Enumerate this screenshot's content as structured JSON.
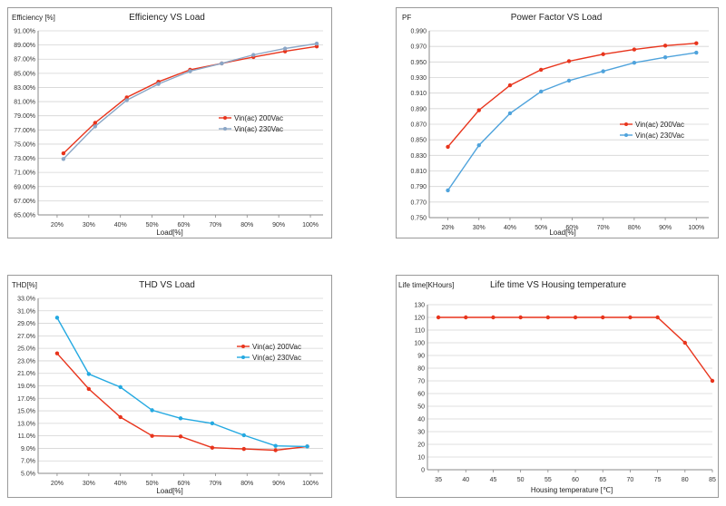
{
  "colors": {
    "series_a": "#e8341c",
    "series_b": "#4fa3dc",
    "series_b_thd": "#24a9e1",
    "grid": "#d4d4d4",
    "axis": "#888888"
  },
  "chart_data": [
    {
      "id": "eff",
      "type": "line",
      "title": "Efficiency VS Load",
      "ylabel": "Efficiency [%]",
      "xlabel": "Load[%]",
      "categories": [
        "20%",
        "30%",
        "40%",
        "50%",
        "60%",
        "70%",
        "80%",
        "90%",
        "100%"
      ],
      "x": [
        20,
        30,
        40,
        50,
        60,
        70,
        80,
        90,
        100
      ],
      "ylim": [
        65,
        91
      ],
      "yticks": [
        65,
        67,
        69,
        71,
        73,
        75,
        77,
        79,
        81,
        83,
        85,
        87,
        89,
        91
      ],
      "ytick_labels": [
        "65.00%",
        "67.00%",
        "69.00%",
        "71.00%",
        "73.00%",
        "75.00%",
        "77.00%",
        "79.00%",
        "81.00%",
        "83.00%",
        "85.00%",
        "87.00%",
        "89.00%",
        "91.00%"
      ],
      "legend_position": "middle-right",
      "grid": true,
      "series": [
        {
          "name": "Vin(ac) 200Vac",
          "color": "#e8341c",
          "x": [
            22,
            32,
            42,
            52,
            62,
            72,
            82,
            92,
            102
          ],
          "values": [
            73.7,
            78.0,
            81.6,
            83.8,
            85.5,
            86.4,
            87.3,
            88.1,
            88.8
          ]
        },
        {
          "name": "Vin(ac) 230Vac",
          "color": "#8aa6c6",
          "x": [
            22,
            32,
            42,
            52,
            62,
            72,
            82,
            92,
            102
          ],
          "values": [
            72.9,
            77.5,
            81.2,
            83.5,
            85.3,
            86.4,
            87.6,
            88.5,
            89.2
          ]
        }
      ]
    },
    {
      "id": "pf",
      "type": "line",
      "title": "Power Factor VS Load",
      "ylabel": "PF",
      "xlabel": "Load[%]",
      "categories": [
        "20%",
        "30%",
        "40%",
        "50%",
        "60%",
        "70%",
        "80%",
        "90%",
        "100%"
      ],
      "x": [
        20,
        30,
        40,
        50,
        60,
        70,
        80,
        90,
        100
      ],
      "ylim": [
        0.75,
        0.99
      ],
      "yticks": [
        0.75,
        0.77,
        0.79,
        0.81,
        0.83,
        0.85,
        0.87,
        0.89,
        0.91,
        0.93,
        0.95,
        0.97,
        0.99
      ],
      "ytick_labels": [
        "0.750",
        "0.770",
        "0.790",
        "0.810",
        "0.830",
        "0.850",
        "0.870",
        "0.890",
        "0.910",
        "0.930",
        "0.950",
        "0.970",
        "0.990"
      ],
      "legend_position": "middle-right",
      "grid": true,
      "series": [
        {
          "name": "Vin(ac) 200Vac",
          "color": "#e8341c",
          "x": [
            20,
            30,
            40,
            50,
            59,
            70,
            80,
            90,
            100
          ],
          "values": [
            0.841,
            0.888,
            0.92,
            0.94,
            0.951,
            0.96,
            0.966,
            0.971,
            0.974
          ]
        },
        {
          "name": "Vin(ac) 230Vac",
          "color": "#4fa3dc",
          "x": [
            20,
            30,
            40,
            50,
            59,
            70,
            80,
            90,
            100
          ],
          "values": [
            0.785,
            0.843,
            0.884,
            0.912,
            0.926,
            0.938,
            0.949,
            0.956,
            0.962
          ]
        }
      ]
    },
    {
      "id": "thd",
      "type": "line",
      "title": "THD VS Load",
      "ylabel": "THD[%]",
      "xlabel": "Load[%]",
      "categories": [
        "20%",
        "30%",
        "40%",
        "50%",
        "60%",
        "70%",
        "80%",
        "90%",
        "100%"
      ],
      "x": [
        20,
        30,
        40,
        50,
        60,
        70,
        80,
        90,
        100
      ],
      "ylim": [
        5,
        33
      ],
      "yticks": [
        5,
        7,
        9,
        11,
        13,
        15,
        17,
        19,
        21,
        23,
        25,
        27,
        29,
        31,
        33
      ],
      "ytick_labels": [
        "5.0%",
        "7.0%",
        "9.0%",
        "11.0%",
        "13.0%",
        "15.0%",
        "17.0%",
        "19.0%",
        "21.0%",
        "23.0%",
        "25.0%",
        "27.0%",
        "29.0%",
        "31.0%",
        "33.0%"
      ],
      "legend_position": "middle-right",
      "grid": true,
      "series": [
        {
          "name": "Vin(ac) 200Vac",
          "color": "#e8341c",
          "x": [
            20,
            30,
            40,
            50,
            59,
            69,
            79,
            89,
            99
          ],
          "values": [
            24.2,
            18.5,
            14.0,
            11.0,
            10.9,
            9.1,
            8.9,
            8.7,
            9.3
          ]
        },
        {
          "name": "Vin(ac) 230Vac",
          "color": "#24a9e1",
          "x": [
            20,
            30,
            40,
            50,
            59,
            69,
            79,
            89,
            99
          ],
          "values": [
            29.9,
            20.9,
            18.8,
            15.1,
            13.8,
            13.0,
            11.1,
            9.4,
            9.3
          ]
        }
      ]
    },
    {
      "id": "life",
      "type": "line",
      "title": "Life time VS Housing temperature",
      "ylabel": "Life time[KHours]",
      "xlabel": "Housing temperature [℃]",
      "categories": [
        "35",
        "40",
        "45",
        "50",
        "55",
        "60",
        "65",
        "70",
        "75",
        "80",
        "85"
      ],
      "x": [
        35,
        40,
        45,
        50,
        55,
        60,
        65,
        70,
        75,
        80,
        85
      ],
      "ylim": [
        0,
        130
      ],
      "yticks": [
        0,
        10,
        20,
        30,
        40,
        50,
        60,
        70,
        80,
        90,
        100,
        110,
        120,
        130
      ],
      "ytick_labels": [
        "0",
        "10",
        "20",
        "30",
        "40",
        "50",
        "60",
        "70",
        "80",
        "90",
        "100",
        "110",
        "120",
        "130"
      ],
      "grid": true,
      "series": [
        {
          "name": "",
          "color": "#e8341c",
          "x": [
            35,
            40,
            45,
            50,
            55,
            60,
            65,
            70,
            75,
            80,
            85
          ],
          "values": [
            120,
            120,
            120,
            120,
            120,
            120,
            120,
            120,
            120,
            100,
            70
          ]
        }
      ]
    }
  ]
}
